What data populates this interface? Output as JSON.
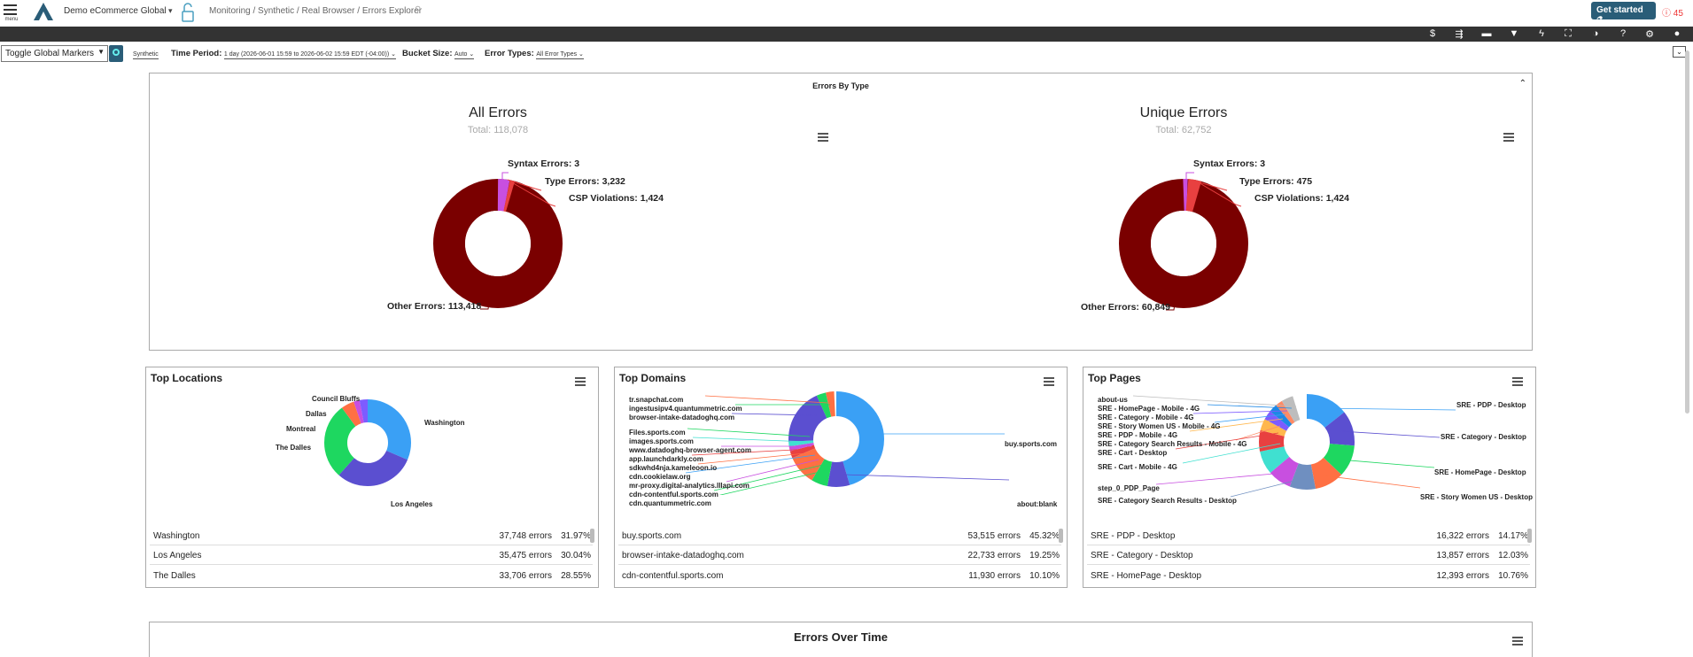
{
  "header": {
    "menu_label": "menu",
    "org_name": "Demo eCommerce Global",
    "breadcrumb": "Monitoring / Synthetic / Real Browser / Errors Explorer",
    "get_started": "Get started",
    "alert_count": "45"
  },
  "filters": {
    "markers": "Toggle Global Markers",
    "source": "Synthetic",
    "time_label": "Time Period:",
    "time_value": "1 day (2026-06-01 15:59 to 2026-06-02 15:59 EDT (-04:00))",
    "bucket_label": "Bucket Size:",
    "bucket_value": "Auto",
    "types_label": "Error Types:",
    "types_value": "All Error Types"
  },
  "errors_by_type": {
    "panel_title": "Errors By Type",
    "all": {
      "title": "All Errors",
      "total": "Total: 118,078",
      "labels": [
        "Syntax Errors: 3",
        "Type Errors: 3,232",
        "CSP Violations: 1,424",
        "Other Errors: 113,418"
      ]
    },
    "unique": {
      "title": "Unique Errors",
      "total": "Total: 62,752",
      "labels": [
        "Syntax Errors: 3",
        "Type Errors: 475",
        "CSP Violations: 1,424",
        "Other Errors: 60,849"
      ]
    }
  },
  "top_locations": {
    "title": "Top Locations",
    "chart_labels": [
      "Council Bluffs",
      "Dallas",
      "Montreal",
      "The Dalles",
      "Washington",
      "Los Angeles"
    ],
    "rows": [
      {
        "name": "Washington",
        "count": "37,748 errors",
        "pct": "31.97%"
      },
      {
        "name": "Los Angeles",
        "count": "35,475 errors",
        "pct": "30.04%"
      },
      {
        "name": "The Dalles",
        "count": "33,706 errors",
        "pct": "28.55%"
      }
    ]
  },
  "top_domains": {
    "title": "Top Domains",
    "chart_labels": [
      "tr.snapchat.com",
      "ingestusipv4.quantummetric.com",
      "browser-intake-datadoghq.com",
      "Files.sports.com",
      "images.sports.com",
      "www.datadoghq-browser-agent.com",
      "app.launchdarkly.com",
      "sdkwhd4nja.kameleoon.io",
      "cdn.cookielaw.org",
      "mr-proxy.digital-analytics.lllapi.com",
      "cdn-contentful.sports.com",
      "cdn.quantummetric.com",
      "buy.sports.com",
      "about:blank"
    ],
    "rows": [
      {
        "name": "buy.sports.com",
        "count": "53,515 errors",
        "pct": "45.32%"
      },
      {
        "name": "browser-intake-datadoghq.com",
        "count": "22,733 errors",
        "pct": "19.25%"
      },
      {
        "name": "cdn-contentful.sports.com",
        "count": "11,930 errors",
        "pct": "10.10%"
      }
    ]
  },
  "top_pages": {
    "title": "Top Pages",
    "chart_labels": [
      "about-us",
      "SRE - HomePage - Mobile - 4G",
      "SRE - Category - Mobile - 4G",
      "SRE - Story Women US - Mobile - 4G",
      "SRE - PDP - Mobile - 4G",
      "SRE - Category Search Results - Mobile - 4G",
      "SRE - Cart - Desktop",
      "SRE - Cart - Mobile - 4G",
      "step_0_PDP_Page",
      "SRE - Category Search Results - Desktop",
      "SRE - PDP - Desktop",
      "SRE - Category - Desktop",
      "SRE - HomePage - Desktop",
      "SRE - Story Women US - Desktop"
    ],
    "rows": [
      {
        "name": "SRE - PDP - Desktop",
        "count": "16,322 errors",
        "pct": "14.17%"
      },
      {
        "name": "SRE - Category - Desktop",
        "count": "13,857 errors",
        "pct": "12.03%"
      },
      {
        "name": "SRE - HomePage - Desktop",
        "count": "12,393 errors",
        "pct": "10.76%"
      }
    ]
  },
  "errors_over_time": {
    "title": "Errors Over Time"
  },
  "colors": {
    "brand": "#2a5d78",
    "other_errors": "#7a0000",
    "alert": "#e33333"
  }
}
